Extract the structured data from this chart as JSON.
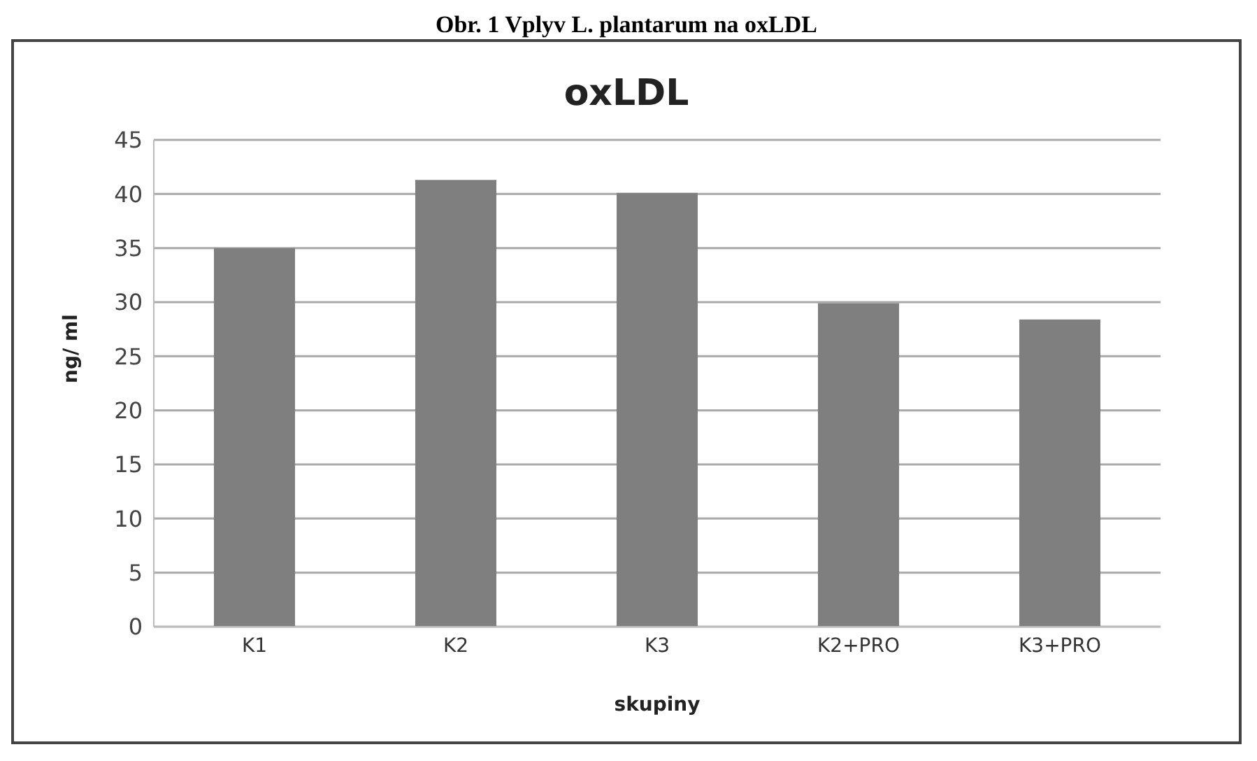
{
  "chart_data": {
    "type": "bar",
    "title": "oxLDL",
    "xlabel": "skupiny",
    "ylabel": "ng/ ml",
    "annotations": [
      "Obr. 1 Vplyv L. plantarum na oxLDL"
    ],
    "categories": [
      "K1",
      "K2",
      "K3",
      "K2+PRO",
      "K3+PRO"
    ],
    "values": [
      35,
      41.3,
      40.1,
      29.9,
      28.4
    ],
    "color": "#7f7f7f",
    "ylim": [
      0,
      45
    ],
    "yticks": [
      0,
      5,
      10,
      15,
      20,
      25,
      30,
      35,
      40,
      45
    ],
    "grid": "y"
  }
}
